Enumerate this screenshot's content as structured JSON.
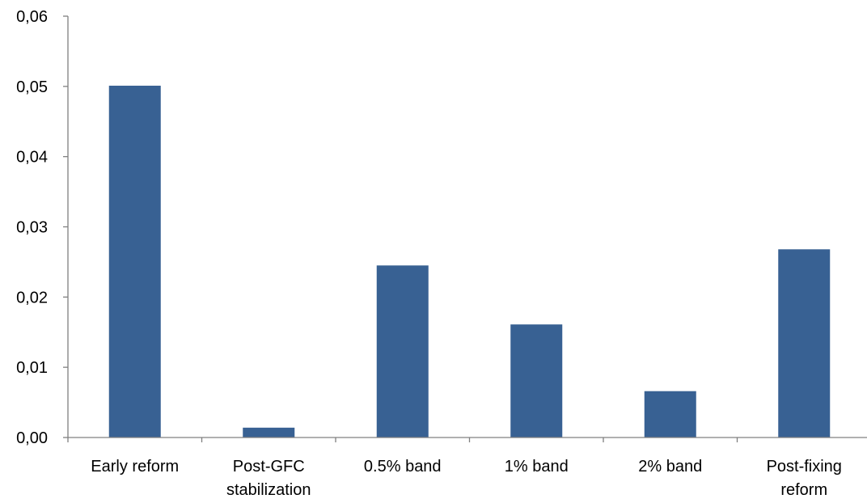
{
  "chart_data": {
    "type": "bar",
    "categories": [
      [
        "Early reform"
      ],
      [
        "Post-GFC",
        "stabilization"
      ],
      [
        "0.5% band"
      ],
      [
        "1% band"
      ],
      [
        "2% band"
      ],
      [
        "Post-fixing",
        "reform"
      ]
    ],
    "values": [
      0.0501,
      0.0014,
      0.0245,
      0.0161,
      0.0066,
      0.0268
    ],
    "y_ticks": [
      "0,00",
      "0,01",
      "0,02",
      "0,03",
      "0,04",
      "0,05",
      "0,06"
    ],
    "ylim": [
      0,
      0.06
    ],
    "title": "",
    "xlabel": "",
    "ylabel": "",
    "grid": false,
    "legend": "none",
    "bar_color": "#386193"
  }
}
